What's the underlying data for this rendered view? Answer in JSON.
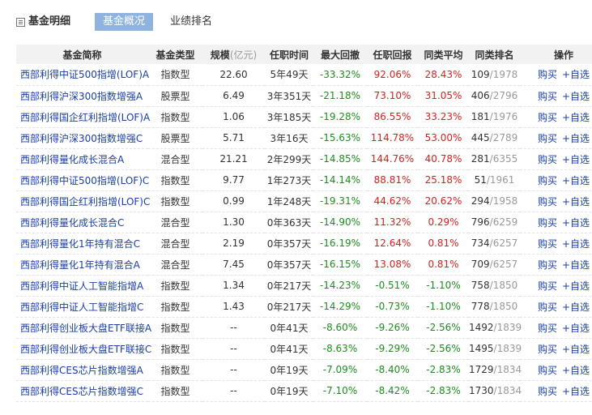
{
  "header": {
    "section_title": "基金明细",
    "tabs": [
      {
        "label": "基金概况",
        "active": true
      },
      {
        "label": "业绩排名",
        "active": false
      }
    ]
  },
  "colors": {
    "accent_tab": "#8eb3df",
    "link": "#1a3fa6",
    "negative": "#1d8e1d",
    "positive": "#d62121",
    "header_bg": "#f2f2f2"
  },
  "table": {
    "columns": {
      "name": "基金简称",
      "type": "基金类型",
      "size": "规模",
      "size_unit": "(亿元)",
      "tenure": "任职时间",
      "drawdown": "最大回撤",
      "return": "任职回报",
      "avg": "同类平均",
      "rank": "同类排名",
      "ops": "操作"
    },
    "buy_label": "购买",
    "watch_label": "+自选",
    "rows": [
      {
        "name": "西部利得中证500指增(LOF)A",
        "type": "指数型",
        "size": "22.60",
        "tenure": "5年49天",
        "drawdown": "-33.32%",
        "return": "92.06%",
        "avg": "28.43%",
        "rank": "109",
        "rank_total": "/1978"
      },
      {
        "name": "西部利得沪深300指数增强A",
        "type": "股票型",
        "size": "6.49",
        "tenure": "3年351天",
        "drawdown": "-21.18%",
        "return": "73.10%",
        "avg": "31.05%",
        "rank": "406",
        "rank_total": "/2796"
      },
      {
        "name": "西部利得国企红利指增(LOF)A",
        "type": "指数型",
        "size": "1.06",
        "tenure": "3年185天",
        "drawdown": "-19.28%",
        "return": "86.55%",
        "avg": "33.23%",
        "rank": "181",
        "rank_total": "/1976"
      },
      {
        "name": "西部利得沪深300指数增强C",
        "type": "股票型",
        "size": "5.71",
        "tenure": "3年16天",
        "drawdown": "-15.63%",
        "return": "114.78%",
        "avg": "53.00%",
        "rank": "445",
        "rank_total": "/2789"
      },
      {
        "name": "西部利得量化成长混合A",
        "type": "混合型",
        "size": "21.21",
        "tenure": "2年299天",
        "drawdown": "-14.85%",
        "return": "144.76%",
        "avg": "40.78%",
        "rank": "281",
        "rank_total": "/6355"
      },
      {
        "name": "西部利得中证500指增(LOF)C",
        "type": "指数型",
        "size": "9.77",
        "tenure": "1年273天",
        "drawdown": "-14.14%",
        "return": "88.81%",
        "avg": "25.18%",
        "rank": "51",
        "rank_total": "/1961"
      },
      {
        "name": "西部利得国企红利指增(LOF)C",
        "type": "指数型",
        "size": "0.99",
        "tenure": "1年248天",
        "drawdown": "-19.31%",
        "return": "44.62%",
        "avg": "20.62%",
        "rank": "294",
        "rank_total": "/1958"
      },
      {
        "name": "西部利得量化成长混合C",
        "type": "混合型",
        "size": "1.30",
        "tenure": "0年363天",
        "drawdown": "-14.90%",
        "return": "11.32%",
        "avg": "0.29%",
        "rank": "796",
        "rank_total": "/6259"
      },
      {
        "name": "西部利得量化1年持有混合C",
        "type": "混合型",
        "size": "2.19",
        "tenure": "0年357天",
        "drawdown": "-16.19%",
        "return": "12.64%",
        "avg": "0.81%",
        "rank": "734",
        "rank_total": "/6257"
      },
      {
        "name": "西部利得量化1年持有混合A",
        "type": "混合型",
        "size": "7.45",
        "tenure": "0年357天",
        "drawdown": "-16.15%",
        "return": "13.08%",
        "avg": "0.81%",
        "rank": "709",
        "rank_total": "/6257"
      },
      {
        "name": "西部利得中证人工智能指增A",
        "type": "指数型",
        "size": "1.34",
        "tenure": "0年217天",
        "drawdown": "-14.23%",
        "return": "-0.51%",
        "avg": "-1.10%",
        "rank": "758",
        "rank_total": "/1850"
      },
      {
        "name": "西部利得中证人工智能指增C",
        "type": "指数型",
        "size": "1.43",
        "tenure": "0年217天",
        "drawdown": "-14.29%",
        "return": "-0.73%",
        "avg": "-1.10%",
        "rank": "778",
        "rank_total": "/1850"
      },
      {
        "name": "西部利得创业板大盘ETF联接A",
        "type": "指数型",
        "size": "--",
        "tenure": "0年41天",
        "drawdown": "-8.60%",
        "return": "-9.26%",
        "avg": "-2.56%",
        "rank": "1492",
        "rank_total": "/1839"
      },
      {
        "name": "西部利得创业板大盘ETF联接C",
        "type": "指数型",
        "size": "--",
        "tenure": "0年41天",
        "drawdown": "-8.63%",
        "return": "-9.29%",
        "avg": "-2.56%",
        "rank": "1495",
        "rank_total": "/1839"
      },
      {
        "name": "西部利得CES芯片指数增强A",
        "type": "指数型",
        "size": "--",
        "tenure": "0年19天",
        "drawdown": "-7.09%",
        "return": "-8.40%",
        "avg": "-2.83%",
        "rank": "1729",
        "rank_total": "/1834"
      },
      {
        "name": "西部利得CES芯片指数增强C",
        "type": "指数型",
        "size": "--",
        "tenure": "0年19天",
        "drawdown": "-7.10%",
        "return": "-8.42%",
        "avg": "-2.83%",
        "rank": "1730",
        "rank_total": "/1834"
      }
    ]
  }
}
